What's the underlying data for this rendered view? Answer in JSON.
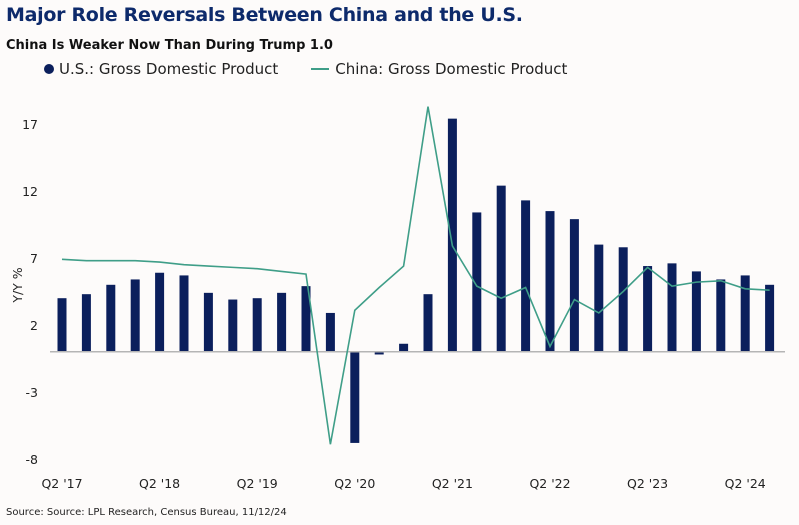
{
  "chart_data": {
    "type": "bar+line",
    "title": "Major Role Reversals Between China and the U.S.",
    "subtitle": "China Is Weaker Now Than During Trump 1.0",
    "ylabel": "Y/Y %",
    "xlabel": "",
    "ylim": [
      -8,
      19
    ],
    "yticks": [
      17,
      12,
      7,
      2,
      -3,
      -8
    ],
    "grid": false,
    "legend_placement": "top",
    "categories": [
      "Q2 '17",
      "Q3 '17",
      "Q4 '17",
      "Q1 '18",
      "Q2 '18",
      "Q3 '18",
      "Q4 '18",
      "Q1 '19",
      "Q2 '19",
      "Q3 '19",
      "Q4 '19",
      "Q1 '20",
      "Q2 '20",
      "Q3 '20",
      "Q4 '20",
      "Q1 '21",
      "Q2 '21",
      "Q3 '21",
      "Q4 '21",
      "Q1 '22",
      "Q2 '22",
      "Q3 '22",
      "Q4 '22",
      "Q1 '23",
      "Q2 '23",
      "Q3 '23",
      "Q4 '23",
      "Q1 '24",
      "Q2 '24",
      "Q3 '24"
    ],
    "xtick_labels": [
      "Q2 '17",
      "Q2 '18",
      "Q2 '19",
      "Q2 '20",
      "Q2 '21",
      "Q2 '22",
      "Q2 '23",
      "Q2 '24"
    ],
    "series": [
      {
        "name": "U.S.: Gross Domestic Product",
        "type": "bar",
        "color": "#0b1f5c",
        "values": [
          4.0,
          4.3,
          5.0,
          5.4,
          5.9,
          5.7,
          4.4,
          3.9,
          4.0,
          4.4,
          4.9,
          2.9,
          -6.8,
          -0.2,
          0.6,
          4.3,
          17.4,
          10.4,
          12.4,
          11.3,
          10.5,
          9.9,
          8.0,
          7.8,
          6.4,
          6.6,
          6.0,
          5.4,
          5.7,
          5.0
        ]
      },
      {
        "name": "China: Gross Domestic Product",
        "type": "line",
        "color": "#3f9e88",
        "values": [
          6.9,
          6.8,
          6.8,
          6.8,
          6.7,
          6.5,
          6.4,
          6.3,
          6.2,
          6.0,
          5.8,
          -6.9,
          3.1,
          4.8,
          6.4,
          18.3,
          7.9,
          4.9,
          4.0,
          4.8,
          0.4,
          3.9,
          2.9,
          4.5,
          6.3,
          4.9,
          5.2,
          5.3,
          4.7,
          4.6
        ]
      }
    ]
  },
  "source": "Source: Source: LPL Research, Census Bureau, 11/12/24"
}
